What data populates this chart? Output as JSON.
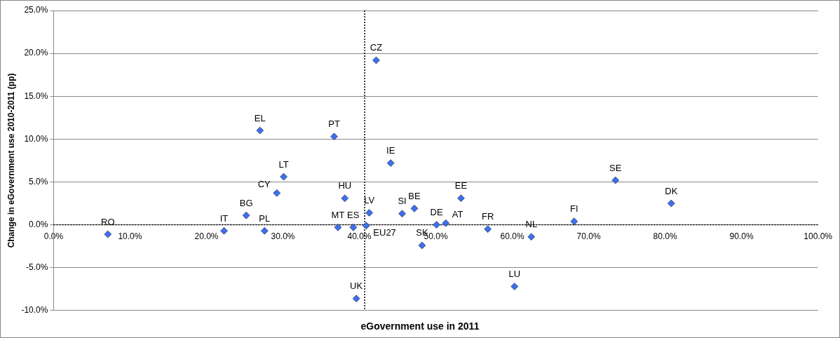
{
  "chart_data": {
    "type": "scatter",
    "xlabel": "eGovernment use in 2011",
    "ylabel": "Change in eGovernment use 2010-2011 (pp)",
    "xlim": [
      0,
      100
    ],
    "xticks": [
      {
        "value": 0,
        "label": "0.0%"
      },
      {
        "value": 10,
        "label": "10.0%"
      },
      {
        "value": 20,
        "label": "20.0%"
      },
      {
        "value": 30,
        "label": "30.0%"
      },
      {
        "value": 40,
        "label": "40.0%"
      },
      {
        "value": 50,
        "label": "50.0%"
      },
      {
        "value": 60,
        "label": "60.0%"
      },
      {
        "value": 70,
        "label": "70.0%"
      },
      {
        "value": 80,
        "label": "80.0%"
      },
      {
        "value": 90,
        "label": "90.0%"
      },
      {
        "value": 100,
        "label": "100.0%"
      }
    ],
    "ylim": [
      -10,
      25
    ],
    "yticks": [
      {
        "value": -10,
        "label": "-10.0%"
      },
      {
        "value": -5,
        "label": "-5.0%"
      },
      {
        "value": 0,
        "label": "0.0%"
      },
      {
        "value": 5,
        "label": "5.0%"
      },
      {
        "value": 10,
        "label": "10.0%"
      },
      {
        "value": 15,
        "label": "15.0%"
      },
      {
        "value": 20,
        "label": "20.0%"
      },
      {
        "value": 25,
        "label": "25.0%"
      }
    ],
    "grid": "y",
    "legend": false,
    "marker": "diamond",
    "series": [
      {
        "color": "#3d6ff0",
        "x": [
          7.1,
          22.3,
          25.2,
          27.6,
          27.0,
          29.2,
          30.1,
          36.7,
          38.1,
          37.2,
          39.2,
          39.6,
          42.2,
          40.9,
          41.3,
          44.1,
          45.6,
          47.2,
          48.2,
          50.1,
          51.3,
          53.3,
          56.8,
          62.5,
          60.3,
          68.1,
          73.5,
          80.8
        ],
        "values": [
          -1.1,
          -0.7,
          1.1,
          -0.7,
          11.0,
          3.7,
          5.6,
          10.3,
          3.1,
          -0.3,
          -0.3,
          -8.6,
          19.2,
          -0.1,
          1.4,
          7.2,
          1.3,
          1.9,
          -2.4,
          0.0,
          0.2,
          3.1,
          -0.5,
          -1.4,
          -7.2,
          0.4,
          5.2,
          2.5
        ]
      }
    ],
    "ref_lines": [
      {
        "axis": "x",
        "value": 40.7,
        "color": "#000000",
        "line_style": "dotted"
      },
      {
        "axis": "y",
        "value": 0,
        "color": "#000000",
        "line_style": "dotted"
      }
    ],
    "annotations": [
      {
        "text": "RO",
        "x": 7.1,
        "y": -1.1
      },
      {
        "text": "IT",
        "x": 22.3,
        "y": -0.7
      },
      {
        "text": "BG",
        "x": 25.2,
        "y": 1.1
      },
      {
        "text": "PL",
        "x": 27.6,
        "y": -0.7
      },
      {
        "text": "EL",
        "x": 27.0,
        "y": 11.0
      },
      {
        "text": "CY",
        "x": 29.2,
        "y": 3.7
      },
      {
        "text": "LT",
        "x": 30.1,
        "y": 5.6
      },
      {
        "text": "PT",
        "x": 36.7,
        "y": 10.3
      },
      {
        "text": "HU",
        "x": 38.1,
        "y": 3.1
      },
      {
        "text": "MT",
        "x": 37.2,
        "y": -0.3
      },
      {
        "text": "ES",
        "x": 39.2,
        "y": -0.3
      },
      {
        "text": "UK",
        "x": 39.6,
        "y": -8.6
      },
      {
        "text": "CZ",
        "x": 42.2,
        "y": 19.2
      },
      {
        "text": "EU27",
        "x": 40.9,
        "y": -0.1
      },
      {
        "text": "LV",
        "x": 41.3,
        "y": 1.4
      },
      {
        "text": "IE",
        "x": 44.1,
        "y": 7.2
      },
      {
        "text": "SI",
        "x": 45.6,
        "y": 1.3
      },
      {
        "text": "BE",
        "x": 47.2,
        "y": 1.9
      },
      {
        "text": "SK",
        "x": 48.2,
        "y": -2.4
      },
      {
        "text": "DE",
        "x": 50.1,
        "y": 0.0
      },
      {
        "text": "AT",
        "x": 51.3,
        "y": 0.2
      },
      {
        "text": "EE",
        "x": 53.3,
        "y": 3.1
      },
      {
        "text": "FR",
        "x": 56.8,
        "y": -0.5
      },
      {
        "text": "NL",
        "x": 62.5,
        "y": -1.4
      },
      {
        "text": "LU",
        "x": 60.3,
        "y": -7.2
      },
      {
        "text": "FI",
        "x": 68.1,
        "y": 0.4
      },
      {
        "text": "SE",
        "x": 73.5,
        "y": 5.2
      },
      {
        "text": "DK",
        "x": 80.8,
        "y": 2.5
      }
    ]
  }
}
